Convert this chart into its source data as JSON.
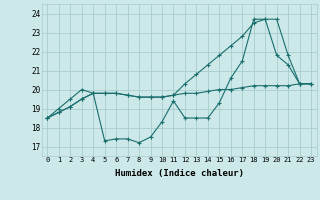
{
  "background_color": "#cce8e8",
  "line_color": "#1a6e6e",
  "grid_color": "#a8cccc",
  "xlabel": "Humidex (Indice chaleur)",
  "ylim": [
    16.5,
    24.5
  ],
  "xlim": [
    -0.5,
    23.5
  ],
  "yticks": [
    17,
    18,
    19,
    20,
    21,
    22,
    23,
    24
  ],
  "xticks": [
    0,
    1,
    2,
    3,
    4,
    5,
    6,
    7,
    8,
    9,
    10,
    11,
    12,
    13,
    14,
    15,
    16,
    17,
    18,
    19,
    20,
    21,
    22,
    23
  ],
  "series1": [
    18.5,
    18.8,
    19.1,
    19.5,
    19.8,
    19.8,
    19.8,
    19.7,
    19.6,
    19.6,
    19.6,
    19.7,
    19.8,
    19.8,
    19.9,
    20.0,
    20.0,
    20.1,
    20.2,
    20.2,
    20.2,
    20.2,
    20.3,
    20.3
  ],
  "series2": [
    18.5,
    18.8,
    19.1,
    19.5,
    19.8,
    17.3,
    17.4,
    17.4,
    17.2,
    17.5,
    18.3,
    19.4,
    18.5,
    18.5,
    18.5,
    19.3,
    20.6,
    21.5,
    23.7,
    23.7,
    21.8,
    21.3,
    20.3,
    20.3
  ],
  "series3": [
    18.5,
    19.0,
    19.5,
    20.0,
    19.8,
    19.8,
    19.8,
    19.7,
    19.6,
    19.6,
    19.6,
    19.7,
    20.3,
    20.8,
    21.3,
    21.8,
    22.3,
    22.8,
    23.5,
    23.7,
    23.7,
    21.8,
    20.3,
    20.3
  ]
}
